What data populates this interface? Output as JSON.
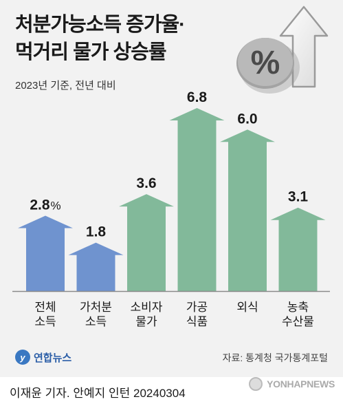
{
  "header": {
    "title_line1": "처분가능소득 증가율·",
    "title_line2": "먹거리 물가 상승률",
    "subtitle": "2023년 기준, 전년 대비"
  },
  "decoration": {
    "icon": "percent-up-arrow-icon",
    "symbol": "%"
  },
  "chart_data": {
    "type": "bar",
    "title": "처분가능소득 증가율·먹거리 물가 상승률",
    "subtitle": "2023년 기준, 전년 대비",
    "categories": [
      "전체\n소득",
      "가처분\n소득",
      "소비자\n물가",
      "가공\n식품",
      "외식",
      "농축\n수산물"
    ],
    "values": [
      2.8,
      1.8,
      3.6,
      6.8,
      6.0,
      3.1
    ],
    "value_labels": [
      "2.8",
      "1.8",
      "3.6",
      "6.8",
      "6.0",
      "3.1"
    ],
    "unit": "%",
    "colors": [
      "#6f93cf",
      "#6f93cf",
      "#82b99a",
      "#82b99a",
      "#82b99a",
      "#82b99a"
    ],
    "ylim": [
      0,
      6.8
    ],
    "grid": false,
    "xlabel": "",
    "ylabel": ""
  },
  "footer": {
    "logo_text": "연합뉴스",
    "source": "자료: 통계청 국가통계포털",
    "credit": "이재윤 기자. 안예지 인턴 20240304",
    "watermark": "YONHAPNEWS"
  }
}
